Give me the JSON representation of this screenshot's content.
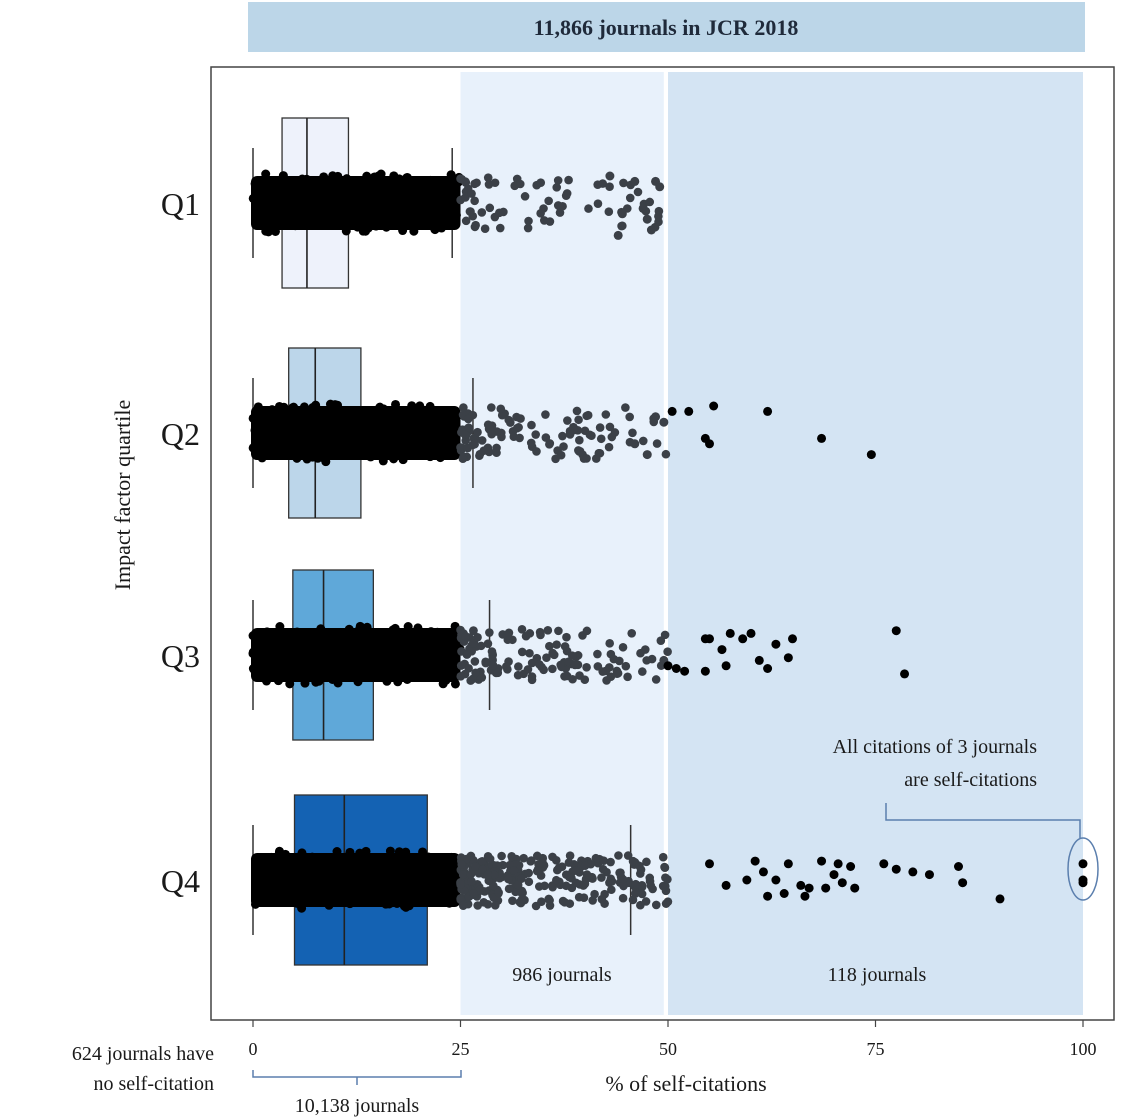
{
  "chart_data": {
    "type": "box-strip",
    "title": "11,866 journals in JCR 2018",
    "xlabel": "% of self-citations",
    "ylabel": "Impact factor quartile",
    "xlim": [
      0,
      100
    ],
    "xticks": [
      0,
      25,
      50,
      75,
      100
    ],
    "categories": [
      "Q1",
      "Q2",
      "Q3",
      "Q4"
    ],
    "boxes": [
      {
        "name": "Q1",
        "whisker_low": 0,
        "q1": 3.5,
        "median": 6.5,
        "q3": 11.5,
        "whisker_high": 24,
        "color": "#eef2fb"
      },
      {
        "name": "Q2",
        "whisker_low": 0,
        "q1": 4.3,
        "median": 7.5,
        "q3": 13,
        "whisker_high": 26.5,
        "color": "#bcd6ea"
      },
      {
        "name": "Q3",
        "whisker_low": 0,
        "q1": 4.8,
        "median": 8.5,
        "q3": 14.5,
        "whisker_high": 28.5,
        "color": "#5fa8d9"
      },
      {
        "name": "Q4",
        "whisker_low": 0,
        "q1": 5,
        "median": 11,
        "q3": 21,
        "whisker_high": 45.5,
        "color": "#1462b3"
      }
    ],
    "outliers": [
      {
        "name": "Q1",
        "max": 49,
        "sparse": [
          [
            43,
            -0.5
          ],
          [
            44.5,
            0.2
          ],
          [
            46,
            -0.4
          ],
          [
            47,
            0.1
          ],
          [
            47.5,
            0.3
          ],
          [
            48.5,
            -0.4
          ],
          [
            48,
            0.5
          ],
          [
            49,
            -0.3
          ],
          [
            44,
            0.6
          ]
        ]
      },
      {
        "name": "Q2",
        "max": 74.5,
        "sparse": [
          [
            49.5,
            -0.2
          ],
          [
            50.5,
            -0.4
          ],
          [
            52.5,
            -0.4
          ],
          [
            55.5,
            -0.5
          ],
          [
            55,
            0.2
          ],
          [
            54.5,
            0.1
          ],
          [
            62,
            -0.4
          ],
          [
            68.5,
            0.1
          ],
          [
            74.5,
            0.4
          ],
          [
            47.5,
            0.4
          ],
          [
            46,
            0.2
          ],
          [
            48.5,
            -0.3
          ]
        ]
      },
      {
        "name": "Q3",
        "max": 78.5,
        "sparse": [
          [
            49.5,
            0.1
          ],
          [
            50,
            0.2
          ],
          [
            51,
            0.25
          ],
          [
            52,
            0.3
          ],
          [
            54.5,
            -0.3
          ],
          [
            54.5,
            0.3
          ],
          [
            55,
            -0.3
          ],
          [
            56.5,
            -0.1
          ],
          [
            57.5,
            -0.4
          ],
          [
            59,
            -0.3
          ],
          [
            60,
            -0.4
          ],
          [
            62,
            0.25
          ],
          [
            63,
            -0.2
          ],
          [
            65,
            -0.3
          ],
          [
            64.5,
            0.05
          ],
          [
            77.5,
            -0.45
          ],
          [
            78.5,
            0.35
          ],
          [
            61,
            0.1
          ],
          [
            57,
            0.2
          ]
        ]
      },
      {
        "name": "Q4",
        "max": 100,
        "sparse": [
          [
            55,
            -0.3
          ],
          [
            57,
            0.1
          ],
          [
            59.5,
            0.0
          ],
          [
            60.5,
            -0.35
          ],
          [
            61.5,
            -0.15
          ],
          [
            62,
            0.3
          ],
          [
            63,
            0.0
          ],
          [
            64.5,
            -0.3
          ],
          [
            66,
            0.1
          ],
          [
            67,
            0.15
          ],
          [
            68.5,
            -0.35
          ],
          [
            69,
            0.15
          ],
          [
            70.5,
            -0.3
          ],
          [
            71,
            0.05
          ],
          [
            72,
            -0.25
          ],
          [
            72.5,
            0.15
          ],
          [
            76,
            -0.3
          ],
          [
            77.5,
            -0.2
          ],
          [
            79.5,
            -0.15
          ],
          [
            81.5,
            -0.1
          ],
          [
            85,
            -0.25
          ],
          [
            85.5,
            0.05
          ],
          [
            90,
            0.35
          ],
          [
            100,
            -0.3
          ],
          [
            100,
            0.0
          ],
          [
            100,
            0.05
          ],
          [
            66.5,
            0.3
          ],
          [
            70,
            -0.1
          ],
          [
            64,
            0.25
          ]
        ]
      }
    ],
    "zones": [
      {
        "from": 25,
        "to": 49.5,
        "color": "#e8f1fb",
        "label": "986 journals"
      },
      {
        "from": 50,
        "to": 100,
        "color": "#d4e4f3",
        "label": "118 journals"
      }
    ],
    "annotations": {
      "bottom_left_1": "624 journals  have",
      "bottom_left_2": "no self-citation",
      "bracket_label": "10,138 journals",
      "top_right_1": "All  citations  of 3 journals",
      "top_right_2": "are self-citations"
    },
    "colors": {
      "title_band": "#bcd6e8",
      "dense_points": "#000000",
      "mid_points": "#3b4047",
      "sparse_points": "#000000"
    }
  }
}
